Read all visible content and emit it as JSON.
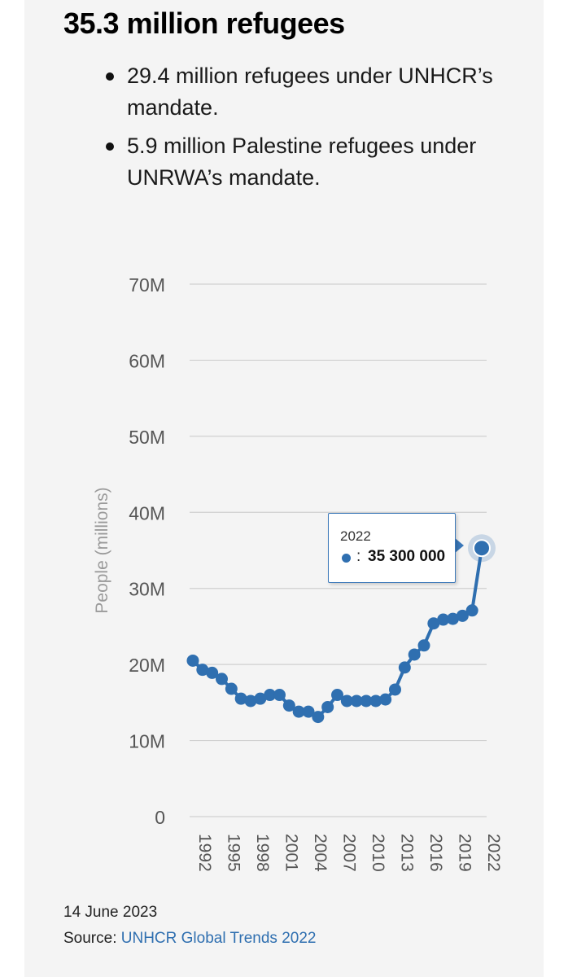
{
  "title": "35.3 million refugees",
  "bullets": [
    "29.4 million refugees under UNHCR’s mandate.",
    "5.9 million Palestine refugees under UNRWA’s mandate."
  ],
  "tooltip": {
    "year": "2022",
    "colon": ":",
    "value": "35 300 000"
  },
  "footer": {
    "date": "14 June 2023",
    "source_label": "Source:",
    "source_link": "UNHCR Global Trends 2022"
  },
  "colors": {
    "line": "#2f6fb0",
    "grid": "#d0d0d0",
    "axis_text": "#555555",
    "ylabel": "#9a9a9a"
  },
  "chart_data": {
    "type": "line",
    "ylabel": "People (millions)",
    "xlabel": "",
    "ylim": [
      0,
      70
    ],
    "y_ticks": [
      0,
      10,
      20,
      30,
      40,
      50,
      60,
      70
    ],
    "y_tick_labels": [
      "0",
      "10M",
      "20M",
      "30M",
      "40M",
      "50M",
      "60M",
      "70M"
    ],
    "x_ticks": [
      1992,
      1995,
      1998,
      2001,
      2004,
      2007,
      2010,
      2013,
      2016,
      2019,
      2022
    ],
    "x_tick_labels": [
      "1992",
      "1995",
      "1998",
      "2001",
      "2004",
      "2007",
      "2010",
      "2013",
      "2016",
      "2019",
      "2022"
    ],
    "grid": true,
    "highlighted_point": {
      "x": 2022,
      "y": 35.3
    },
    "series": [
      {
        "name": "",
        "x": [
          1992,
          1993,
          1994,
          1995,
          1996,
          1997,
          1998,
          1999,
          2000,
          2001,
          2002,
          2003,
          2004,
          2005,
          2006,
          2007,
          2008,
          2009,
          2010,
          2011,
          2012,
          2013,
          2014,
          2015,
          2016,
          2017,
          2018,
          2019,
          2020,
          2021,
          2022
        ],
        "values": [
          20.5,
          19.3,
          18.9,
          18.1,
          16.8,
          15.5,
          15.2,
          15.5,
          16.0,
          16.0,
          14.6,
          13.8,
          13.8,
          13.1,
          14.4,
          16.0,
          15.2,
          15.2,
          15.2,
          15.2,
          15.4,
          16.7,
          19.6,
          21.3,
          22.5,
          25.4,
          25.9,
          26.0,
          26.4,
          27.1,
          35.3
        ]
      }
    ]
  }
}
